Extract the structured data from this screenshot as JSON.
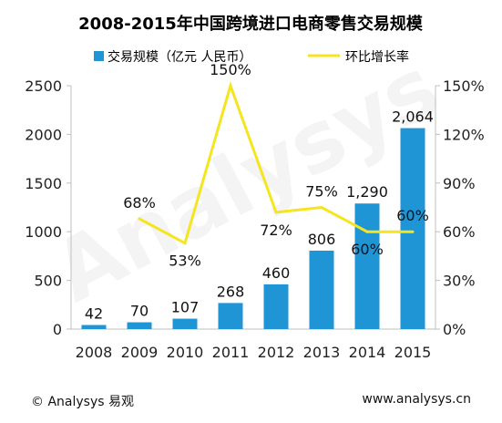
{
  "chart_data": {
    "type": "bar",
    "title": "2008-2015年中国跨境进口电商零售交易规模",
    "categories": [
      "2008",
      "2009",
      "2010",
      "2011",
      "2012",
      "2013",
      "2014",
      "2015"
    ],
    "series": [
      {
        "name": "交易规模（亿元 人民币）",
        "type": "bar",
        "axis": "left",
        "values": [
          42,
          70,
          107,
          268,
          460,
          806,
          1290,
          2064
        ],
        "labels": [
          "42",
          "70",
          "107",
          "268",
          "460",
          "806",
          "1,290",
          "2,064"
        ],
        "color": "#1f95d6"
      },
      {
        "name": "环比增长率",
        "type": "line",
        "axis": "right",
        "x": [
          "2009",
          "2010",
          "2011",
          "2012",
          "2013",
          "2014",
          "2015"
        ],
        "values": [
          68,
          53,
          150,
          72,
          75,
          60,
          60
        ],
        "labels": [
          "68%",
          "53%",
          "150%",
          "72%",
          "75%",
          "60%",
          "60%"
        ],
        "color": "#f5e51f"
      }
    ],
    "left_axis": {
      "ylim": [
        0,
        2500
      ],
      "ticks": [
        "0",
        "500",
        "1000",
        "1500",
        "2000",
        "2500"
      ]
    },
    "right_axis": {
      "ylim": [
        0,
        150
      ],
      "ticks": [
        "0%",
        "30%",
        "60%",
        "90%",
        "120%",
        "150%"
      ]
    },
    "legend_position": "top",
    "grid": false
  },
  "watermark": "Analysys",
  "footer": {
    "copyright_symbol": "©",
    "left": "Analysys 易观",
    "right": "www.analysys.cn"
  }
}
